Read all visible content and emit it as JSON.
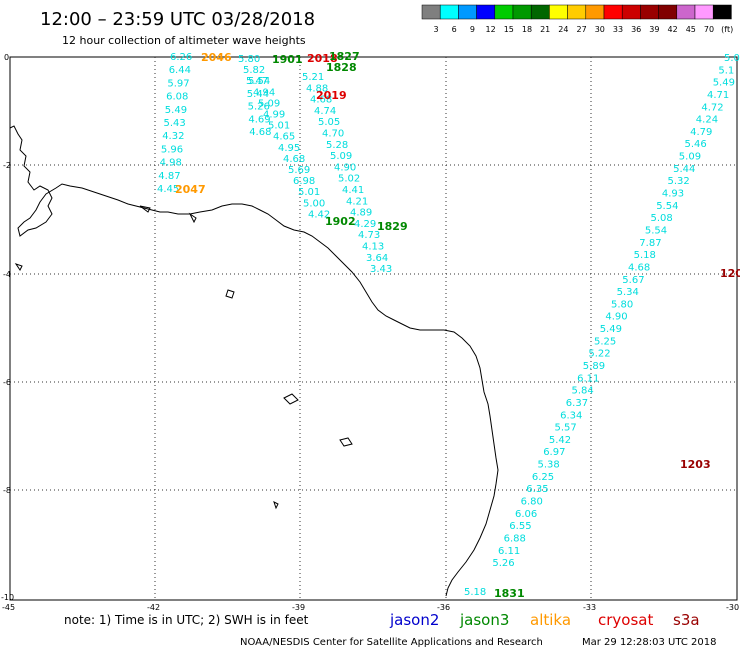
{
  "header": {
    "title": "12:00 – 23:59 UTC 03/28/2018",
    "subtitle": "12 hour collection of altimeter wave heights"
  },
  "color_scale": {
    "colors": [
      "#7f7f7f",
      "#00ffff",
      "#0099ff",
      "#0000ff",
      "#00cc00",
      "#009900",
      "#006600",
      "#ffff00",
      "#ffcc00",
      "#ff9900",
      "#ff0000",
      "#cc0000",
      "#990000",
      "#800000",
      "#cc66cc",
      "#ff99ff",
      "#000000"
    ],
    "labels": [
      "3",
      "6",
      "9",
      "12",
      "15",
      "18",
      "21",
      "24",
      "27",
      "30",
      "33",
      "36",
      "39",
      "42",
      "45",
      "70",
      "(ft)"
    ]
  },
  "axes": {
    "x_ticks": [
      "-45",
      "-42",
      "-39",
      "-36",
      "-33",
      "-30"
    ],
    "y_ticks": [
      "0",
      "-2",
      "-4",
      "-6",
      "-8",
      "-10"
    ]
  },
  "tracks": [
    {
      "satellite": "altika",
      "color": "#00dddd",
      "values": [
        "6.26",
        "6.44",
        "5.97",
        "6.08",
        "5.49",
        "5.43",
        "4.32",
        "5.96",
        "4.98",
        "4.87",
        "4.45"
      ]
    },
    {
      "satellite": "altika",
      "color": "#00dddd",
      "values": [
        "5.80",
        "5.82",
        "5.54",
        "4.94",
        "5.09",
        "4.99",
        "5.01",
        "4.65",
        "4.95",
        "4.68",
        "5.69",
        "6.98",
        "5.01",
        "5.00",
        "4.42"
      ]
    },
    {
      "satellite": "jason3",
      "color": "#00dddd",
      "values": [
        "5.47",
        "5.44",
        "5.26",
        "4.69",
        "4.68"
      ]
    },
    {
      "satellite": "jason3",
      "color": "#00dddd",
      "values": [
        "5.21",
        "4.88",
        "4.68",
        "4.74",
        "5.05",
        "4.70",
        "5.28",
        "5.09",
        "4.90",
        "5.02",
        "4.41",
        "4.21",
        "4.89",
        "4.29",
        "4.73",
        "4.13",
        "3.64",
        "3.43"
      ]
    },
    {
      "satellite": "cryosat",
      "color": "#00dddd",
      "values": [
        "5.0",
        "5.1",
        "5.49",
        "4.71",
        "4.72",
        "4.24",
        "4.79",
        "5.46",
        "5.09",
        "5.44",
        "5.32",
        "4.93",
        "5.54",
        "5.08",
        "5.54",
        "7.87",
        "5.18",
        "4.68",
        "5.67",
        "5.34",
        "5.80",
        "4.90",
        "5.49",
        "5.25",
        "5.22",
        "5.89",
        "6.11",
        "5.84",
        "6.37",
        "6.34",
        "5.57",
        "5.42",
        "6.97",
        "5.38",
        "6.25",
        "6.35",
        "6.80",
        "6.06",
        "6.55",
        "6.88",
        "6.11",
        "5.26"
      ]
    },
    {
      "satellite": "jason3",
      "color": "#00dddd",
      "values": [
        "5.18"
      ]
    }
  ],
  "pass_labels": [
    {
      "text": "2046",
      "color": "#ff9900"
    },
    {
      "text": "1901",
      "color": "#008800"
    },
    {
      "text": "2018",
      "color": "#dd0000"
    },
    {
      "text": "1827",
      "color": "#008800"
    },
    {
      "text": "1828",
      "color": "#008800"
    },
    {
      "text": "2019",
      "color": "#dd0000"
    },
    {
      "text": "2047",
      "color": "#ff9900"
    },
    {
      "text": "1902",
      "color": "#008800"
    },
    {
      "text": "1829",
      "color": "#008800"
    },
    {
      "text": "120",
      "color": "#990000"
    },
    {
      "text": "1203",
      "color": "#990000"
    },
    {
      "text": "1831",
      "color": "#008800"
    }
  ],
  "footer": {
    "note": "note:  1) Time is in UTC;  2) SWH is in feet",
    "satellites": [
      {
        "name": "jason2",
        "color": "#0000cc"
      },
      {
        "name": "jason3",
        "color": "#008800"
      },
      {
        "name": "altika",
        "color": "#ff9900"
      },
      {
        "name": "cryosat",
        "color": "#dd0000"
      },
      {
        "name": "s3a",
        "color": "#990000"
      }
    ],
    "credit": "NOAA/NESDIS Center for Satellite Applications and Research",
    "timestamp": "Mar 29 12:28:03 UTC 2018"
  }
}
